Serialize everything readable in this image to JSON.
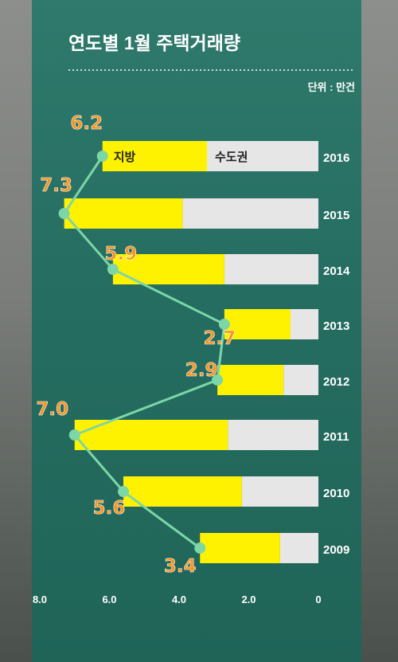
{
  "chart_data": {
    "type": "bar",
    "title": "연도별 1월 주택거래량",
    "unit": "단위 : 만건",
    "legend": [
      "지방",
      "수도권"
    ],
    "categories": [
      "2016",
      "2015",
      "2014",
      "2013",
      "2012",
      "2011",
      "2010",
      "2009"
    ],
    "series": [
      {
        "name": "지방",
        "values": [
          3.0,
          3.4,
          3.2,
          1.9,
          1.9,
          4.4,
          3.4,
          2.3
        ]
      },
      {
        "name": "수도권",
        "values": [
          3.2,
          3.9,
          2.7,
          0.8,
          1.0,
          2.6,
          2.2,
          1.1
        ]
      }
    ],
    "totals": [
      6.2,
      7.3,
      5.9,
      2.7,
      2.9,
      7.0,
      5.6,
      3.4
    ],
    "total_labels": [
      "6.2",
      "7.3",
      "5.9",
      "2.7",
      "2.9",
      "7.0",
      "5.6",
      "3.4"
    ],
    "x_ticks": [
      "8.0",
      "6.0",
      "4.0",
      "2.0",
      "0"
    ],
    "x_tick_values": [
      8,
      6,
      4,
      2,
      0
    ],
    "xlim": [
      0,
      8
    ],
    "axis_direction": "right-to-left",
    "colors": {
      "local": "#fff200",
      "capital": "#e6e6e6",
      "line": "#7cd6a6",
      "value": "#f7931e",
      "panel": "#266e62"
    }
  }
}
